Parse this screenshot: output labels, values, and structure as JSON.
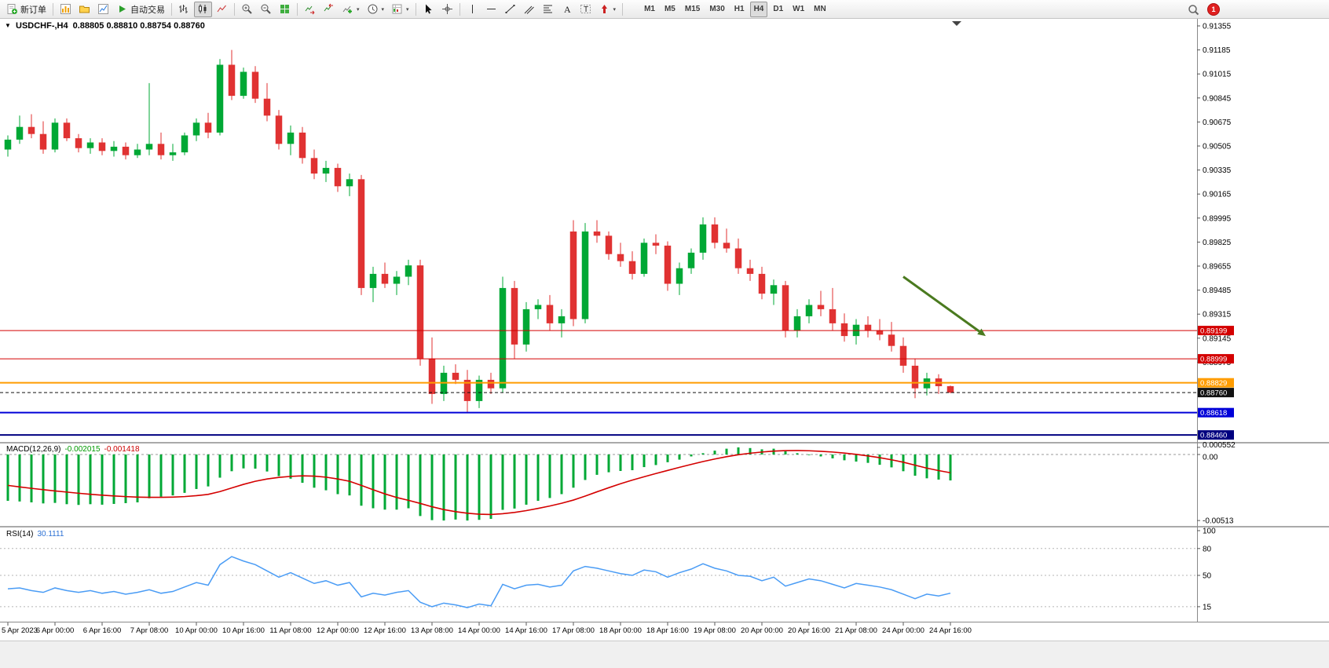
{
  "toolbar": {
    "new_order_label": "新订单",
    "autotrade_label": "自动交易",
    "timeframes": [
      "M1",
      "M5",
      "M15",
      "M30",
      "H1",
      "H4",
      "D1",
      "W1",
      "MN"
    ],
    "active_timeframe": "H4",
    "badge_count": "1",
    "icon_names": [
      "new-order",
      "new-chart",
      "profiles",
      "market-watch",
      "autotrading",
      "bar-chart",
      "candlesticks",
      "line-chart",
      "zoom-in",
      "zoom-out",
      "tile-windows",
      "auto-scroll",
      "chart-shift",
      "indicators",
      "periods",
      "templates",
      "cursor",
      "crosshair",
      "vertical-line",
      "horizontal-line",
      "trendline",
      "equidistant-channel",
      "fibonacci",
      "text",
      "text-label",
      "arrows",
      "search",
      "notifications"
    ]
  },
  "chart": {
    "symbol_period": "USDCHF-,H4",
    "ohlc_text": "0.88805 0.88810 0.88754 0.88760"
  },
  "indicators": {
    "macd": {
      "label": "MACD(12,26,9)",
      "value_main": "-0.002015",
      "value_signal": "-0.001418",
      "axis_labels": [
        "0.000552",
        "0.00",
        "-0.00513"
      ]
    },
    "rsi": {
      "label": "RSI(14)",
      "value": "30.1111",
      "axis_labels": [
        "100",
        "80",
        "50",
        "15"
      ]
    }
  },
  "price_axis": {
    "ticks": [
      "0.91355",
      "0.91185",
      "0.91015",
      "0.90845",
      "0.90675",
      "0.90505",
      "0.90335",
      "0.90165",
      "0.89995",
      "0.89825",
      "0.89655",
      "0.89485",
      "0.89315",
      "0.89145",
      "0.88975"
    ]
  },
  "time_axis": {
    "labels": [
      "5 Apr 2023",
      "6 Apr 00:00",
      "6 Apr 16:00",
      "7 Apr 08:00",
      "10 Apr 00:00",
      "10 Apr 16:00",
      "11 Apr 08:00",
      "12 Apr 00:00",
      "12 Apr 16:00",
      "13 Apr 08:00",
      "14 Apr 00:00",
      "14 Apr 16:00",
      "17 Apr 08:00",
      "18 Apr 00:00",
      "18 Apr 16:00",
      "19 Apr 08:00",
      "20 Apr 00:00",
      "20 Apr 16:00",
      "21 Apr 08:00",
      "24 Apr 00:00",
      "24 Apr 16:00"
    ]
  },
  "chart_data": {
    "type": "candlestick",
    "symbol": "USDCHF-",
    "period": "H4",
    "up_color": "#00a835",
    "down_color": "#e03232",
    "price_range_top": 0.91355,
    "price_tick_step": 0.0017,
    "current_ohlc": {
      "open": 0.88805,
      "high": 0.8881,
      "low": 0.88754,
      "close": 0.8876
    },
    "candles": [
      [
        0.9048,
        0.9058,
        0.9043,
        0.9055
      ],
      [
        0.9055,
        0.9072,
        0.9052,
        0.9064
      ],
      [
        0.9064,
        0.9073,
        0.9056,
        0.9059
      ],
      [
        0.9059,
        0.9068,
        0.9045,
        0.9048
      ],
      [
        0.9048,
        0.907,
        0.9046,
        0.9067
      ],
      [
        0.9067,
        0.907,
        0.9054,
        0.9056
      ],
      [
        0.9056,
        0.9059,
        0.9046,
        0.9049
      ],
      [
        0.9049,
        0.9056,
        0.9045,
        0.9053
      ],
      [
        0.9053,
        0.9056,
        0.9044,
        0.9047
      ],
      [
        0.9047,
        0.9054,
        0.9043,
        0.905
      ],
      [
        0.905,
        0.9053,
        0.9041,
        0.9044
      ],
      [
        0.9044,
        0.9052,
        0.9042,
        0.9048
      ],
      [
        0.9048,
        0.9095,
        0.9044,
        0.9052
      ],
      [
        0.9052,
        0.906,
        0.9041,
        0.9044
      ],
      [
        0.9044,
        0.9052,
        0.904,
        0.9046
      ],
      [
        0.9046,
        0.906,
        0.9044,
        0.9058
      ],
      [
        0.9058,
        0.907,
        0.9054,
        0.9067
      ],
      [
        0.9067,
        0.9074,
        0.9056,
        0.906
      ],
      [
        0.906,
        0.9112,
        0.9058,
        0.9108
      ],
      [
        0.9108,
        0.91185,
        0.9083,
        0.9086
      ],
      [
        0.9086,
        0.9106,
        0.9084,
        0.9103
      ],
      [
        0.9103,
        0.9107,
        0.9081,
        0.9084
      ],
      [
        0.9084,
        0.9095,
        0.9068,
        0.9072
      ],
      [
        0.9072,
        0.9076,
        0.9048,
        0.9052
      ],
      [
        0.9052,
        0.9065,
        0.9044,
        0.906
      ],
      [
        0.906,
        0.9064,
        0.9038,
        0.9042
      ],
      [
        0.9042,
        0.9048,
        0.9027,
        0.9031
      ],
      [
        0.9031,
        0.904,
        0.9025,
        0.9035
      ],
      [
        0.9035,
        0.9038,
        0.9018,
        0.9022
      ],
      [
        0.9022,
        0.9031,
        0.9015,
        0.9027
      ],
      [
        0.9027,
        0.903,
        0.8945,
        0.895
      ],
      [
        0.895,
        0.8965,
        0.894,
        0.896
      ],
      [
        0.896,
        0.8968,
        0.895,
        0.8953
      ],
      [
        0.8953,
        0.8962,
        0.8945,
        0.8958
      ],
      [
        0.8958,
        0.897,
        0.8952,
        0.8966
      ],
      [
        0.8966,
        0.897,
        0.8895,
        0.89
      ],
      [
        0.89,
        0.8915,
        0.8868,
        0.8875
      ],
      [
        0.8875,
        0.8895,
        0.887,
        0.889
      ],
      [
        0.889,
        0.8896,
        0.8882,
        0.8885
      ],
      [
        0.8885,
        0.8892,
        0.8862,
        0.887
      ],
      [
        0.887,
        0.8888,
        0.8865,
        0.8885
      ],
      [
        0.8885,
        0.889,
        0.8875,
        0.8879
      ],
      [
        0.8879,
        0.8958,
        0.8876,
        0.895
      ],
      [
        0.895,
        0.8955,
        0.89,
        0.891
      ],
      [
        0.891,
        0.894,
        0.8905,
        0.8935
      ],
      [
        0.8935,
        0.8942,
        0.8928,
        0.8938
      ],
      [
        0.8938,
        0.8945,
        0.892,
        0.8925
      ],
      [
        0.8925,
        0.8935,
        0.8915,
        0.893
      ],
      [
        0.899,
        0.8998,
        0.8923,
        0.8928
      ],
      [
        0.8928,
        0.8996,
        0.8925,
        0.899
      ],
      [
        0.899,
        0.8998,
        0.8982,
        0.8987
      ],
      [
        0.8987,
        0.899,
        0.897,
        0.8974
      ],
      [
        0.8974,
        0.8982,
        0.8965,
        0.8969
      ],
      [
        0.8969,
        0.8976,
        0.8956,
        0.896
      ],
      [
        0.896,
        0.8985,
        0.8958,
        0.8982
      ],
      [
        0.8982,
        0.8988,
        0.8974,
        0.898
      ],
      [
        0.898,
        0.8983,
        0.8948,
        0.8953
      ],
      [
        0.8953,
        0.8968,
        0.8945,
        0.8964
      ],
      [
        0.8964,
        0.8978,
        0.896,
        0.8975
      ],
      [
        0.8975,
        0.9,
        0.897,
        0.8995
      ],
      [
        0.8995,
        0.9,
        0.8978,
        0.8982
      ],
      [
        0.8982,
        0.8992,
        0.8975,
        0.8978
      ],
      [
        0.8978,
        0.8985,
        0.896,
        0.8964
      ],
      [
        0.8964,
        0.897,
        0.8955,
        0.896
      ],
      [
        0.896,
        0.8965,
        0.8942,
        0.8946
      ],
      [
        0.8946,
        0.8956,
        0.8938,
        0.8952
      ],
      [
        0.8952,
        0.8955,
        0.8915,
        0.892
      ],
      [
        0.892,
        0.8935,
        0.8915,
        0.893
      ],
      [
        0.893,
        0.8942,
        0.8925,
        0.8938
      ],
      [
        0.8938,
        0.8948,
        0.893,
        0.8935
      ],
      [
        0.8935,
        0.895,
        0.892,
        0.8925
      ],
      [
        0.8925,
        0.8932,
        0.8912,
        0.8916
      ],
      [
        0.8916,
        0.8928,
        0.891,
        0.8924
      ],
      [
        0.8924,
        0.893,
        0.8915,
        0.892
      ],
      [
        0.892,
        0.8928,
        0.8913,
        0.8917
      ],
      [
        0.8917,
        0.8926,
        0.8905,
        0.8909
      ],
      [
        0.8909,
        0.8915,
        0.889,
        0.8895
      ],
      [
        0.8895,
        0.89,
        0.8872,
        0.8879
      ],
      [
        0.8879,
        0.889,
        0.8874,
        0.8886
      ],
      [
        0.8886,
        0.8889,
        0.8875,
        0.88805
      ],
      [
        0.88805,
        0.8881,
        0.88754,
        0.8876
      ]
    ],
    "hlines": [
      {
        "price": 0.89199,
        "label": "0.89199",
        "color": "#d40000",
        "width": 1,
        "style": "solid"
      },
      {
        "price": 0.88999,
        "label": "0.88999",
        "color": "#d40000",
        "width": 1,
        "style": "solid"
      },
      {
        "price": 0.88829,
        "label": "0.88829",
        "color": "#ff9c00",
        "width": 2,
        "style": "solid"
      },
      {
        "price": 0.8876,
        "label": "0.88760",
        "color": "#111111",
        "width": 1,
        "style": "dash"
      },
      {
        "price": 0.88618,
        "label": "0.88618",
        "color": "#0000d8",
        "width": 2,
        "style": "solid"
      },
      {
        "price": 0.8846,
        "label": "0.88460",
        "color": "#000080",
        "width": 2,
        "style": "solid"
      }
    ],
    "trend_arrow": {
      "from": {
        "candle": 76,
        "price": 0.8958
      },
      "to": {
        "candle": 83,
        "price": 0.8916
      },
      "color": "#4a7a1f"
    },
    "macd": {
      "params": "12,26,9",
      "histogram": [
        -0.0036,
        -0.00365,
        -0.00372,
        -0.0038,
        -0.00376,
        -0.00386,
        -0.00392,
        -0.00386,
        -0.0039,
        -0.00384,
        -0.00378,
        -0.00372,
        -0.0034,
        -0.00328,
        -0.00318,
        -0.00298,
        -0.00268,
        -0.00248,
        -0.0018,
        -0.0013,
        -0.00108,
        -0.0011,
        -0.00132,
        -0.00168,
        -0.00188,
        -0.0022,
        -0.00258,
        -0.00278,
        -0.00308,
        -0.00318,
        -0.00398,
        -0.00418,
        -0.00428,
        -0.00428,
        -0.00418,
        -0.00478,
        -0.0051,
        -0.00513,
        -0.00505,
        -0.00513,
        -0.00508,
        -0.005,
        -0.0043,
        -0.0042,
        -0.0039,
        -0.0036,
        -0.00338,
        -0.00308,
        -0.00258,
        -0.00198,
        -0.00158,
        -0.00138,
        -0.00128,
        -0.00122,
        -0.00098,
        -0.00082,
        -0.0006,
        -0.0004,
        -0.00015,
        0.0001,
        0.0003,
        0.00045,
        0.000552,
        0.0005,
        0.0004,
        0.00045,
        0.00025,
        0.0001,
        -5e-05,
        -0.00015,
        -0.0003,
        -0.00045,
        -0.00055,
        -0.00065,
        -0.0008,
        -0.001,
        -0.0013,
        -0.00165,
        -0.00185,
        -0.00195,
        -0.002015
      ],
      "signal": [
        -0.0024,
        -0.00252,
        -0.00263,
        -0.00273,
        -0.00283,
        -0.00292,
        -0.00301,
        -0.00309,
        -0.00316,
        -0.00322,
        -0.00327,
        -0.00331,
        -0.00333,
        -0.00333,
        -0.00331,
        -0.00327,
        -0.0032,
        -0.0031,
        -0.00288,
        -0.0026,
        -0.00232,
        -0.00208,
        -0.0019,
        -0.00178,
        -0.0017,
        -0.00166,
        -0.00168,
        -0.00176,
        -0.0019,
        -0.00208,
        -0.0024,
        -0.00274,
        -0.00306,
        -0.00334,
        -0.00356,
        -0.0038,
        -0.00406,
        -0.00428,
        -0.00444,
        -0.00456,
        -0.00464,
        -0.00466,
        -0.0046,
        -0.0045,
        -0.00436,
        -0.00419,
        -0.004,
        -0.00379,
        -0.00354,
        -0.00323,
        -0.0029,
        -0.00258,
        -0.00227,
        -0.00199,
        -0.00173,
        -0.00148,
        -0.00124,
        -0.001,
        -0.00077,
        -0.00055,
        -0.00035,
        -0.00017,
        -2e-05,
        0.0001,
        0.00019,
        0.00026,
        0.0003,
        0.00031,
        0.00029,
        0.00025,
        0.00019,
        0.00011,
        1e-05,
        -0.00011,
        -0.00025,
        -0.00041,
        -0.0006,
        -0.00083,
        -0.00106,
        -0.00125,
        -0.001418
      ]
    },
    "rsi": {
      "period": 14,
      "levels": [
        80,
        50,
        15
      ],
      "values": [
        35,
        36,
        33,
        31,
        36,
        33,
        31,
        33,
        30,
        32,
        29,
        31,
        34,
        30,
        32,
        37,
        42,
        39,
        62,
        71,
        66,
        62,
        55,
        48,
        53,
        47,
        41,
        44,
        39,
        42,
        26,
        30,
        28,
        31,
        33,
        20,
        15,
        19,
        17,
        14,
        18,
        16,
        40,
        35,
        39,
        40,
        37,
        39,
        55,
        60,
        58,
        55,
        52,
        50,
        56,
        54,
        48,
        53,
        57,
        63,
        58,
        55,
        50,
        49,
        44,
        48,
        38,
        42,
        46,
        44,
        40,
        36,
        41,
        39,
        37,
        34,
        29,
        24,
        29,
        27,
        30.1111
      ]
    }
  }
}
